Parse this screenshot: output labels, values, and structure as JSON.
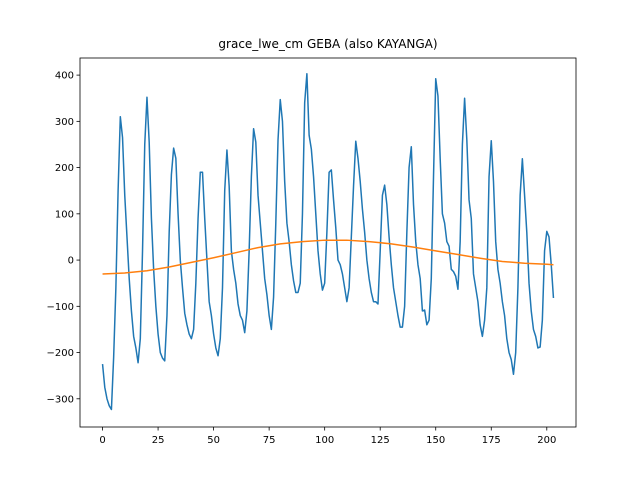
{
  "chart_data": {
    "type": "line",
    "title": "grace_lwe_cm GEBA (also KAYANGA)",
    "xlim": [
      -10.15,
      213.15
    ],
    "ylim": [
      -361,
      437
    ],
    "xticks": [
      0,
      25,
      50,
      75,
      100,
      125,
      150,
      175,
      200
    ],
    "yticks": [
      {
        "value": -300,
        "label": "−300"
      },
      {
        "value": -200,
        "label": "−200"
      },
      {
        "value": -100,
        "label": "−100"
      },
      0,
      100,
      200,
      300,
      400
    ],
    "series": [
      {
        "color": "#1f77b4",
        "x": [
          0,
          1,
          2,
          3,
          4,
          5,
          6,
          7,
          8,
          9,
          10,
          11,
          12,
          13,
          14,
          15,
          16,
          17,
          18,
          19,
          20,
          21,
          22,
          23,
          24,
          25,
          26,
          27,
          28,
          29,
          30,
          31,
          32,
          33,
          34,
          35,
          36,
          37,
          38,
          39,
          40,
          41,
          42,
          43,
          44,
          45,
          46,
          47,
          48,
          49,
          50,
          51,
          52,
          53,
          54,
          55,
          56,
          57,
          58,
          59,
          60,
          61,
          62,
          63,
          64,
          65,
          66,
          67,
          68,
          69,
          70,
          71,
          72,
          73,
          74,
          75,
          76,
          77,
          78,
          79,
          80,
          81,
          82,
          83,
          84,
          85,
          86,
          87,
          88,
          89,
          90,
          91,
          92,
          93,
          94,
          95,
          96,
          97,
          98,
          99,
          100,
          101,
          102,
          103,
          104,
          105,
          106,
          107,
          108,
          109,
          110,
          111,
          112,
          113,
          114,
          115,
          116,
          117,
          118,
          119,
          120,
          121,
          122,
          123,
          124,
          125,
          126,
          127,
          128,
          129,
          130,
          131,
          132,
          133,
          134,
          135,
          136,
          137,
          138,
          139,
          140,
          141,
          142,
          143,
          144,
          145,
          146,
          147,
          148,
          149,
          150,
          151,
          152,
          153,
          154,
          155,
          156,
          157,
          158,
          159,
          160,
          161,
          162,
          163,
          164,
          165,
          166,
          167,
          168,
          169,
          170,
          171,
          172,
          173,
          174,
          175,
          176,
          177,
          178,
          179,
          180,
          181,
          182,
          183,
          184,
          185,
          186,
          187,
          188,
          189,
          190,
          191,
          192,
          193,
          194,
          195,
          196,
          197,
          198,
          199,
          200,
          201,
          202,
          203
        ],
        "values": [
          -225,
          -275,
          -300,
          -315,
          -323,
          -210,
          -60,
          150,
          310,
          265,
          140,
          50,
          -40,
          -110,
          -165,
          -190,
          -222,
          -170,
          20,
          250,
          352,
          255,
          90,
          -20,
          -100,
          -160,
          -200,
          -212,
          -218,
          -120,
          60,
          185,
          242,
          220,
          100,
          0,
          -60,
          -115,
          -140,
          -160,
          -170,
          -150,
          -50,
          90,
          190,
          190,
          90,
          0,
          -90,
          -120,
          -160,
          -190,
          -207,
          -170,
          -60,
          150,
          238,
          160,
          20,
          -20,
          -50,
          -95,
          -120,
          -130,
          -157,
          -110,
          20,
          180,
          284,
          255,
          140,
          80,
          20,
          -40,
          -75,
          -120,
          -150,
          -80,
          80,
          260,
          347,
          300,
          170,
          80,
          40,
          -10,
          -45,
          -70,
          -70,
          -50,
          100,
          340,
          403,
          270,
          240,
          180,
          100,
          20,
          -30,
          -65,
          -50,
          60,
          190,
          195,
          130,
          70,
          0,
          -10,
          -30,
          -60,
          -90,
          -60,
          50,
          160,
          257,
          220,
          170,
          110,
          60,
          0,
          -40,
          -70,
          -90,
          -90,
          -95,
          20,
          140,
          162,
          120,
          50,
          -10,
          -60,
          -90,
          -120,
          -145,
          -145,
          -100,
          60,
          200,
          245,
          120,
          40,
          -10,
          -40,
          -110,
          -108,
          -140,
          -130,
          -40,
          180,
          392,
          355,
          220,
          100,
          80,
          40,
          30,
          -20,
          -25,
          -35,
          -63,
          40,
          250,
          350,
          260,
          130,
          90,
          -30,
          -60,
          -90,
          -140,
          -165,
          -130,
          -60,
          180,
          258,
          170,
          40,
          -20,
          -50,
          -90,
          -120,
          -170,
          -200,
          -215,
          -247,
          -200,
          -60,
          140,
          219,
          140,
          60,
          -50,
          -110,
          -150,
          -165,
          -190,
          -188,
          -130,
          20,
          62,
          50,
          -10,
          -82
        ]
      },
      {
        "color": "#ff7f0e",
        "x": [
          0,
          10,
          20,
          30,
          40,
          50,
          60,
          70,
          80,
          90,
          100,
          110,
          120,
          130,
          140,
          150,
          160,
          170,
          180,
          190,
          200,
          203
        ],
        "values": [
          -30,
          -28,
          -23,
          -15,
          -5,
          5,
          16,
          27,
          35,
          40,
          43,
          43,
          40,
          35,
          28,
          20,
          12,
          4,
          -3,
          -7,
          -9,
          -10
        ]
      }
    ]
  }
}
